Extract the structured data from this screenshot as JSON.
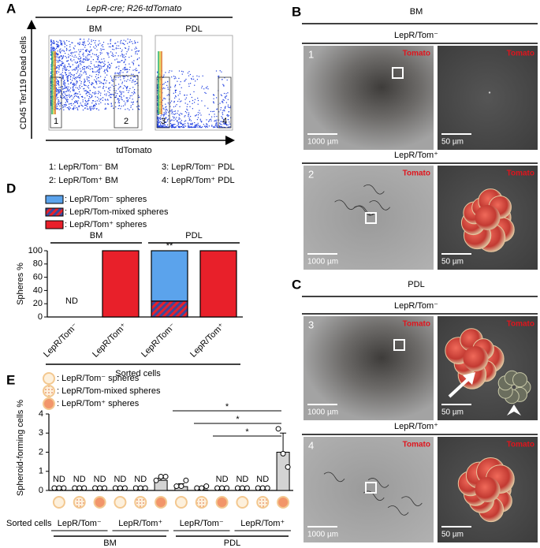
{
  "figure": {
    "A": {
      "label": "A",
      "title": "LepR-cre; R26-tdTomato",
      "plots": [
        "BM",
        "PDL"
      ],
      "y_label": "CD45 Ter119 Dead cells",
      "x_label": "tdTomato",
      "gates": [
        "1",
        "2",
        "3",
        "4"
      ],
      "legend": [
        "1: LepR/Tom⁻ BM",
        "3: LepR/Tom⁻ PDL",
        "2: LepR/Tom⁺ BM",
        "4: LepR/Tom⁺ PDL"
      ]
    },
    "B": {
      "label": "B",
      "title": "BM",
      "rows": [
        {
          "title": "LepR/Tom⁻",
          "number": "1",
          "channel": [
            "Tomato",
            "Tomato"
          ],
          "scale_bars": [
            "1000 µm",
            "50 µm"
          ]
        },
        {
          "title": "LepR/Tom⁺",
          "number": "2",
          "channel": [
            "Tomato",
            "Tomato"
          ],
          "scale_bars": [
            "1000 µm",
            "50 µm"
          ]
        }
      ]
    },
    "C": {
      "label": "C",
      "title": "PDL",
      "rows": [
        {
          "title": "LepR/Tom⁻",
          "number": "3",
          "channel": [
            "Tomato",
            "Tomato"
          ],
          "scale_bars": [
            "1000 µm",
            "50 µm"
          ]
        },
        {
          "title": "LepR/Tom⁺",
          "number": "4",
          "channel": [
            "Tomato",
            "Tomato"
          ],
          "scale_bars": [
            "1000 µm",
            "50 µm"
          ]
        }
      ]
    }
  },
  "chart_data": [
    {
      "type": "stacked_bar",
      "label": "D",
      "y_label": "Spheres %",
      "x_label": "Sorted cells",
      "groups": [
        "BM",
        "PDL"
      ],
      "categories": [
        "LepR/Tom⁻",
        "LepR/Tom⁺",
        "LepR/Tom⁻",
        "LepR/Tom⁺"
      ],
      "series": [
        {
          "name": ": LepR/Tom⁻ spheres",
          "color": "#5ba3ec",
          "values": [
            null,
            0,
            76,
            0
          ]
        },
        {
          "name": ": LepR/Tom-mixed spheres",
          "color": "#e8202a",
          "hatch_color": "#3a4a9c",
          "values": [
            null,
            0,
            24,
            0
          ]
        },
        {
          "name": ": LepR/Tom⁺ spheres",
          "color": "#e8202a",
          "values": [
            null,
            100,
            0,
            100
          ]
        }
      ],
      "annotations": [
        "ND",
        null,
        "**",
        null
      ],
      "ylim": [
        0,
        100
      ],
      "yticks": [
        0,
        20,
        40,
        60,
        80,
        100
      ]
    },
    {
      "type": "bar",
      "label": "E",
      "y_label": "Spheroid-forming cells %",
      "x_label": "Sorted cells",
      "legend": [
        ": LepR/Tom⁻ spheres",
        ": LepR/Tom-mixed spheres",
        ": LepR/Tom⁺ spheres"
      ],
      "groups": [
        "LepR/Tom⁻",
        "LepR/Tom⁺",
        "LepR/Tom⁻",
        "LepR/Tom⁺"
      ],
      "supergroups": [
        "BM",
        "PDL"
      ],
      "color": "#d3d3d3",
      "values": [
        null,
        null,
        null,
        null,
        null,
        0.53,
        0.2,
        0.03,
        null,
        null,
        null,
        2.0
      ],
      "value_labels": [
        "ND",
        "ND",
        "ND",
        "ND",
        "ND",
        null,
        null,
        null,
        "ND",
        "ND",
        "ND",
        null
      ],
      "errors": [
        null,
        null,
        null,
        null,
        null,
        0.1,
        0.15,
        0.06,
        null,
        null,
        null,
        1.0
      ],
      "points": [
        [
          0,
          0,
          0
        ],
        [
          0,
          0,
          0
        ],
        [
          0,
          0,
          0
        ],
        [
          0,
          0,
          0
        ],
        [
          0,
          0,
          0
        ],
        [
          0.4,
          0.6,
          0.6
        ],
        [
          0.1,
          0.1,
          0.4
        ],
        [
          0,
          0,
          0.1
        ],
        [
          0,
          0,
          0
        ],
        [
          0,
          0,
          0
        ],
        [
          0,
          0,
          0
        ],
        [
          3.1,
          1.8,
          1.1
        ]
      ],
      "significance": [
        "*",
        "*",
        "*"
      ],
      "ylim": [
        0,
        4
      ],
      "yticks": [
        0,
        1,
        2,
        3,
        4
      ]
    }
  ]
}
